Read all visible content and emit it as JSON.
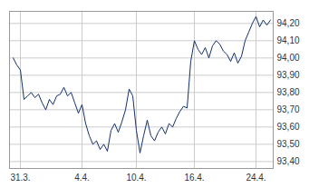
{
  "chart_data": {
    "type": "line",
    "categories": [
      null,
      null,
      "31.3.",
      null,
      null,
      null,
      null,
      null,
      null,
      null,
      null,
      null,
      null,
      null,
      null,
      null,
      null,
      null,
      null,
      "4.4.",
      null,
      null,
      null,
      null,
      null,
      null,
      null,
      null,
      null,
      null,
      null,
      null,
      null,
      null,
      "10.4.",
      null,
      null,
      null,
      null,
      null,
      null,
      null,
      null,
      null,
      null,
      null,
      null,
      null,
      null,
      null,
      "16.4.",
      null,
      null,
      null,
      null,
      null,
      null,
      null,
      null,
      null,
      null,
      null,
      null,
      null,
      null,
      null,
      null,
      "24.4.",
      null,
      null,
      null,
      null
    ],
    "values": [
      94.0,
      93.96,
      93.93,
      93.76,
      93.78,
      93.8,
      93.77,
      93.79,
      93.74,
      93.7,
      93.76,
      93.73,
      93.78,
      93.79,
      93.83,
      93.78,
      93.8,
      93.74,
      93.68,
      93.73,
      93.62,
      93.55,
      93.5,
      93.52,
      93.47,
      93.5,
      93.46,
      93.58,
      93.62,
      93.57,
      93.63,
      93.7,
      93.82,
      93.78,
      93.58,
      93.45,
      93.55,
      93.64,
      93.55,
      93.52,
      93.57,
      93.6,
      93.56,
      93.62,
      93.6,
      93.65,
      93.69,
      93.72,
      93.71,
      93.98,
      94.1,
      94.05,
      94.02,
      94.06,
      94.0,
      94.07,
      94.1,
      94.08,
      94.04,
      94.02,
      93.98,
      94.03,
      93.97,
      94.01,
      94.1,
      94.15,
      94.2,
      94.24,
      94.18,
      94.22,
      94.19,
      94.22
    ],
    "color": "#12306e",
    "ylim": [
      93.36,
      94.27
    ],
    "yticks": [
      {
        "value": 93.4,
        "label": "93,40"
      },
      {
        "value": 93.5,
        "label": "93,50"
      },
      {
        "value": 93.6,
        "label": "93,60"
      },
      {
        "value": 93.7,
        "label": "93,70"
      },
      {
        "value": 93.8,
        "label": "93,80"
      },
      {
        "value": 93.9,
        "label": "93,90"
      },
      {
        "value": 94.0,
        "label": "94,00"
      },
      {
        "value": 94.1,
        "label": "94,10"
      },
      {
        "value": 94.2,
        "label": "94,20"
      }
    ],
    "grid": true
  }
}
